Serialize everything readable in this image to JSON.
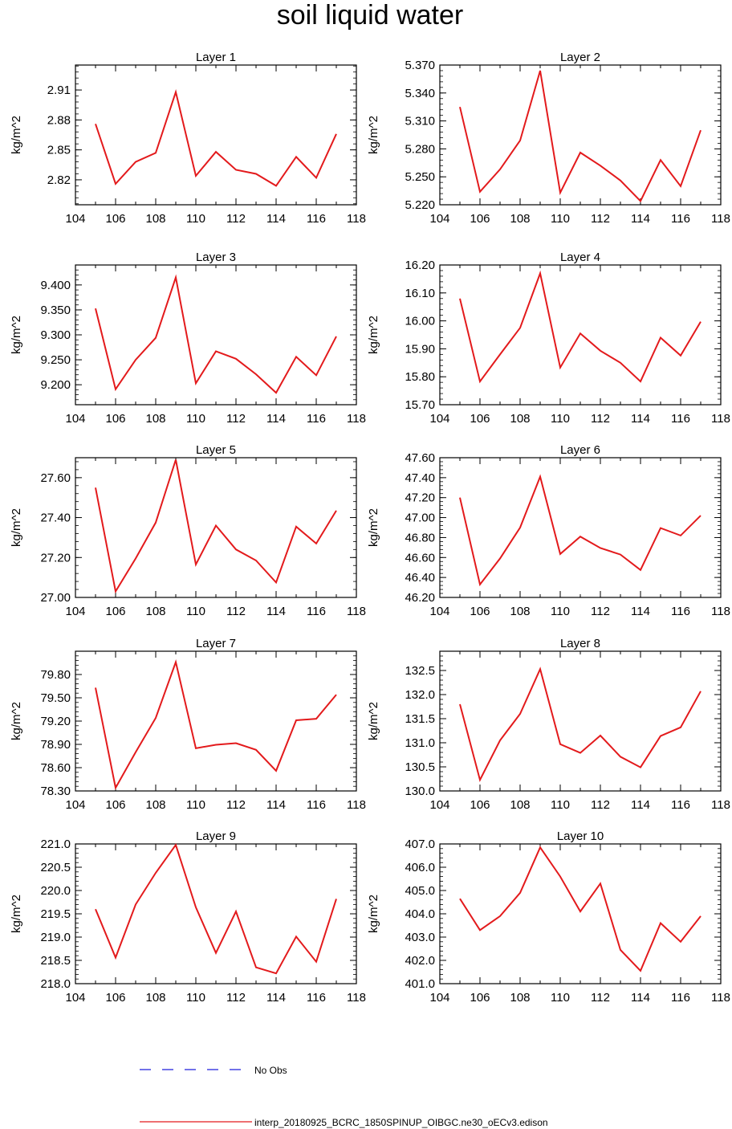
{
  "title": "soil liquid water",
  "ylabel": "kg/m^2",
  "x_ticks": [
    "104",
    "106",
    "108",
    "110",
    "112",
    "114",
    "116",
    "118"
  ],
  "xlim": [
    104,
    118
  ],
  "series_color": "#e31a1c",
  "legend": {
    "obs_label": "No Obs",
    "obs_color": "#1f1fdc",
    "model_label": "interp_20180925_BCRC_1850SPINUP_OIBGC.ne30_oECv3.edison",
    "model_color": "#e31a1c"
  },
  "chart_data": [
    {
      "type": "line",
      "title": "Layer 1",
      "ylabel": "kg/m^2",
      "x": [
        105,
        106,
        107,
        108,
        109,
        110,
        111,
        112,
        113,
        114,
        115,
        116,
        117
      ],
      "values": [
        2.876,
        2.816,
        2.838,
        2.847,
        2.908,
        2.824,
        2.848,
        2.83,
        2.826,
        2.814,
        2.843,
        2.822,
        2.866
      ],
      "ylim": [
        2.795,
        2.935
      ],
      "y_ticks": [
        "2.82",
        "2.85",
        "2.88",
        "2.91"
      ],
      "y_tick_values": [
        2.82,
        2.85,
        2.88,
        2.91
      ]
    },
    {
      "type": "line",
      "title": "Layer 2",
      "ylabel": "kg/m^2",
      "x": [
        105,
        106,
        107,
        108,
        109,
        110,
        111,
        112,
        113,
        114,
        115,
        116,
        117
      ],
      "values": [
        5.325,
        5.234,
        5.258,
        5.289,
        5.364,
        5.233,
        5.276,
        5.262,
        5.246,
        5.224,
        5.268,
        5.24,
        5.3
      ],
      "ylim": [
        5.22,
        5.37
      ],
      "y_ticks": [
        "5.220",
        "5.250",
        "5.280",
        "5.310",
        "5.340",
        "5.370"
      ],
      "y_tick_values": [
        5.22,
        5.25,
        5.28,
        5.31,
        5.34,
        5.37
      ]
    },
    {
      "type": "line",
      "title": "Layer 3",
      "ylabel": "kg/m^2",
      "x": [
        105,
        106,
        107,
        108,
        109,
        110,
        111,
        112,
        113,
        114,
        115,
        116,
        117
      ],
      "values": [
        9.353,
        9.191,
        9.25,
        9.294,
        9.415,
        9.203,
        9.267,
        9.252,
        9.221,
        9.184,
        9.256,
        9.219,
        9.297
      ],
      "ylim": [
        9.16,
        9.44
      ],
      "y_ticks": [
        "9.200",
        "9.250",
        "9.300",
        "9.350",
        "9.400"
      ],
      "y_tick_values": [
        9.2,
        9.25,
        9.3,
        9.35,
        9.4
      ]
    },
    {
      "type": "line",
      "title": "Layer 4",
      "ylabel": "kg/m^2",
      "x": [
        105,
        106,
        107,
        108,
        109,
        110,
        111,
        112,
        113,
        114,
        115,
        116,
        117
      ],
      "values": [
        16.08,
        15.783,
        15.88,
        15.975,
        16.17,
        15.833,
        15.955,
        15.893,
        15.85,
        15.783,
        15.94,
        15.876,
        15.997
      ],
      "ylim": [
        15.7,
        16.2
      ],
      "y_ticks": [
        "15.70",
        "15.80",
        "15.90",
        "16.00",
        "16.10",
        "16.20"
      ],
      "y_tick_values": [
        15.7,
        15.8,
        15.9,
        16.0,
        16.1,
        16.2
      ]
    },
    {
      "type": "line",
      "title": "Layer 5",
      "ylabel": "kg/m^2",
      "x": [
        105,
        106,
        107,
        108,
        109,
        110,
        111,
        112,
        113,
        114,
        115,
        116,
        117
      ],
      "values": [
        27.55,
        27.03,
        27.195,
        27.375,
        27.69,
        27.165,
        27.36,
        27.24,
        27.185,
        27.075,
        27.355,
        27.27,
        27.435
      ],
      "ylim": [
        27.0,
        27.7
      ],
      "y_ticks": [
        "27.00",
        "27.20",
        "27.40",
        "27.60"
      ],
      "y_tick_values": [
        27.0,
        27.2,
        27.4,
        27.6
      ]
    },
    {
      "type": "line",
      "title": "Layer 6",
      "ylabel": "kg/m^2",
      "x": [
        105,
        106,
        107,
        108,
        109,
        110,
        111,
        112,
        113,
        114,
        115,
        116,
        117
      ],
      "values": [
        47.2,
        46.33,
        46.59,
        46.9,
        47.41,
        46.635,
        46.81,
        46.695,
        46.63,
        46.475,
        46.895,
        46.82,
        47.02
      ],
      "ylim": [
        46.2,
        47.6
      ],
      "y_ticks": [
        "46.20",
        "46.40",
        "46.60",
        "46.80",
        "47.00",
        "47.20",
        "47.40",
        "47.60"
      ],
      "y_tick_values": [
        46.2,
        46.4,
        46.6,
        46.8,
        47.0,
        47.2,
        47.4,
        47.6
      ]
    },
    {
      "type": "line",
      "title": "Layer 7",
      "ylabel": "kg/m^2",
      "x": [
        105,
        106,
        107,
        108,
        109,
        110,
        111,
        112,
        113,
        114,
        115,
        116,
        117
      ],
      "values": [
        79.63,
        78.34,
        78.8,
        79.24,
        79.96,
        78.85,
        78.895,
        78.915,
        78.83,
        78.56,
        79.21,
        79.23,
        79.54
      ],
      "ylim": [
        78.3,
        80.1
      ],
      "y_ticks": [
        "78.30",
        "78.60",
        "78.90",
        "79.20",
        "79.50",
        "79.80"
      ],
      "y_tick_values": [
        78.3,
        78.6,
        78.9,
        79.2,
        79.5,
        79.8
      ]
    },
    {
      "type": "line",
      "title": "Layer 8",
      "ylabel": "kg/m^2",
      "x": [
        105,
        106,
        107,
        108,
        109,
        110,
        111,
        112,
        113,
        114,
        115,
        116,
        117
      ],
      "values": [
        131.8,
        130.23,
        131.05,
        131.6,
        132.53,
        130.97,
        130.79,
        131.15,
        130.71,
        130.49,
        131.14,
        131.32,
        132.07
      ],
      "ylim": [
        130.0,
        132.9
      ],
      "y_ticks": [
        "130.0",
        "130.5",
        "131.0",
        "131.5",
        "132.0",
        "132.5"
      ],
      "y_tick_values": [
        130.0,
        130.5,
        131.0,
        131.5,
        132.0,
        132.5
      ]
    },
    {
      "type": "line",
      "title": "Layer 9",
      "ylabel": "kg/m^2",
      "x": [
        105,
        106,
        107,
        108,
        109,
        110,
        111,
        112,
        113,
        114,
        115,
        116,
        117
      ],
      "values": [
        219.6,
        218.56,
        219.7,
        220.38,
        220.98,
        219.64,
        218.66,
        219.55,
        218.35,
        218.22,
        219.01,
        218.47,
        219.82
      ],
      "ylim": [
        218.0,
        221.0
      ],
      "y_ticks": [
        "218.0",
        "218.5",
        "219.0",
        "219.5",
        "220.0",
        "220.5",
        "221.0"
      ],
      "y_tick_values": [
        218.0,
        218.5,
        219.0,
        219.5,
        220.0,
        220.5,
        221.0
      ]
    },
    {
      "type": "line",
      "title": "Layer 10",
      "ylabel": "kg/m^2",
      "x": [
        105,
        106,
        107,
        108,
        109,
        110,
        111,
        112,
        113,
        114,
        115,
        116,
        117
      ],
      "values": [
        404.65,
        403.3,
        403.9,
        404.9,
        406.85,
        405.6,
        404.1,
        405.3,
        402.45,
        401.55,
        403.6,
        402.8,
        403.9
      ],
      "ylim": [
        401.0,
        407.0
      ],
      "y_ticks": [
        "401.0",
        "402.0",
        "403.0",
        "404.0",
        "405.0",
        "406.0",
        "407.0"
      ],
      "y_tick_values": [
        401.0,
        402.0,
        403.0,
        404.0,
        405.0,
        406.0,
        407.0
      ]
    }
  ]
}
